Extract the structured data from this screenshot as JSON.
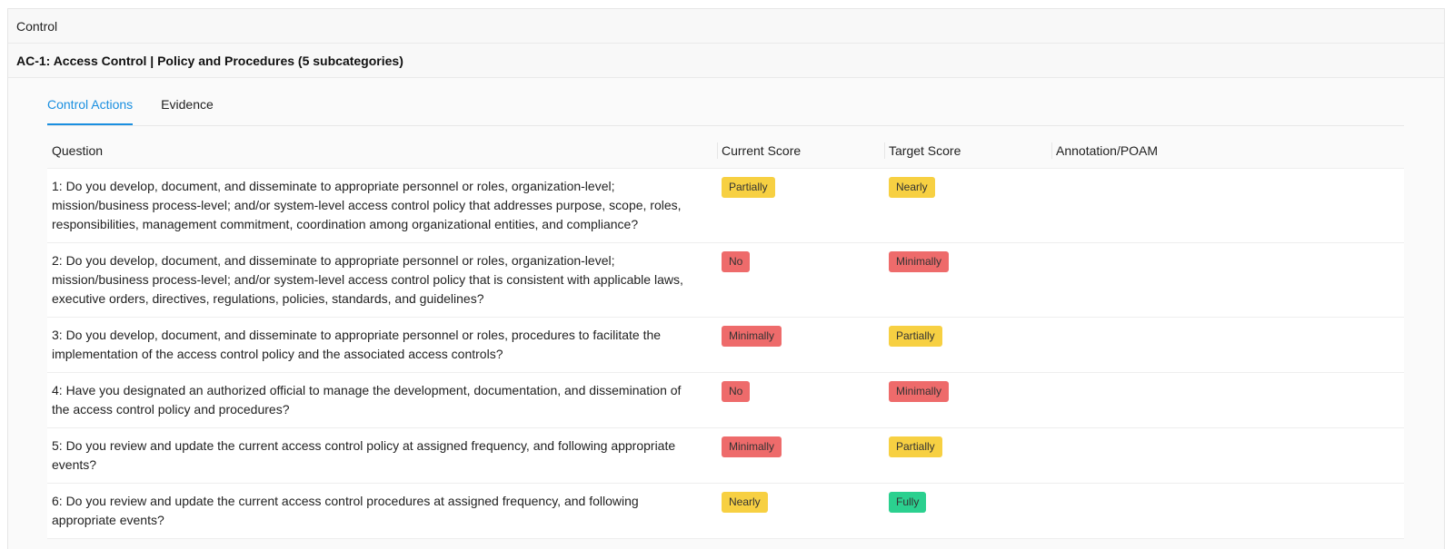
{
  "header": {
    "title": "Control"
  },
  "control": {
    "title": "AC-1: Access Control | Policy and Procedures (5 subcategories)"
  },
  "tabs": [
    {
      "label": "Control Actions",
      "active": true
    },
    {
      "label": "Evidence",
      "active": false
    }
  ],
  "table": {
    "columns": [
      "Question",
      "Current Score",
      "Target Score",
      "Annotation/POAM"
    ],
    "rows": [
      {
        "question": "1: Do you develop, document, and disseminate to appropriate personnel or roles, organization-level; mission/business process-level; and/or system-level access control policy that addresses purpose, scope, roles, responsibilities, management commitment, coordination among organizational entities, and compliance?",
        "current": "Partially",
        "target": "Nearly",
        "annotation": ""
      },
      {
        "question": "2: Do you develop, document, and disseminate to appropriate personnel or roles, organization-level; mission/business process-level; and/or system-level access control policy that is consistent with applicable laws, executive orders, directives, regulations, policies, standards, and guidelines?",
        "current": "No",
        "target": "Minimally",
        "annotation": ""
      },
      {
        "question": "3: Do you develop, document, and disseminate to appropriate personnel or roles, procedures to facilitate the implementation of the access control policy and the associated access controls?",
        "current": "Minimally",
        "target": "Partially",
        "annotation": ""
      },
      {
        "question": "4: Have you designated an authorized official to manage the development, documentation, and dissemination of the access control policy and procedures?",
        "current": "No",
        "target": "Minimally",
        "annotation": ""
      },
      {
        "question": "5: Do you review and update the current access control policy at assigned frequency, and following appropriate events?",
        "current": "Minimally",
        "target": "Partially",
        "annotation": ""
      },
      {
        "question": "6: Do you review and update the current access control procedures at assigned frequency, and following appropriate events?",
        "current": "Nearly",
        "target": "Fully",
        "annotation": ""
      }
    ]
  },
  "colors": {
    "accent": "#1a8fe0",
    "score_yellow": "#f7d042",
    "score_red": "#ee6b6b",
    "score_green": "#2bd08f"
  }
}
